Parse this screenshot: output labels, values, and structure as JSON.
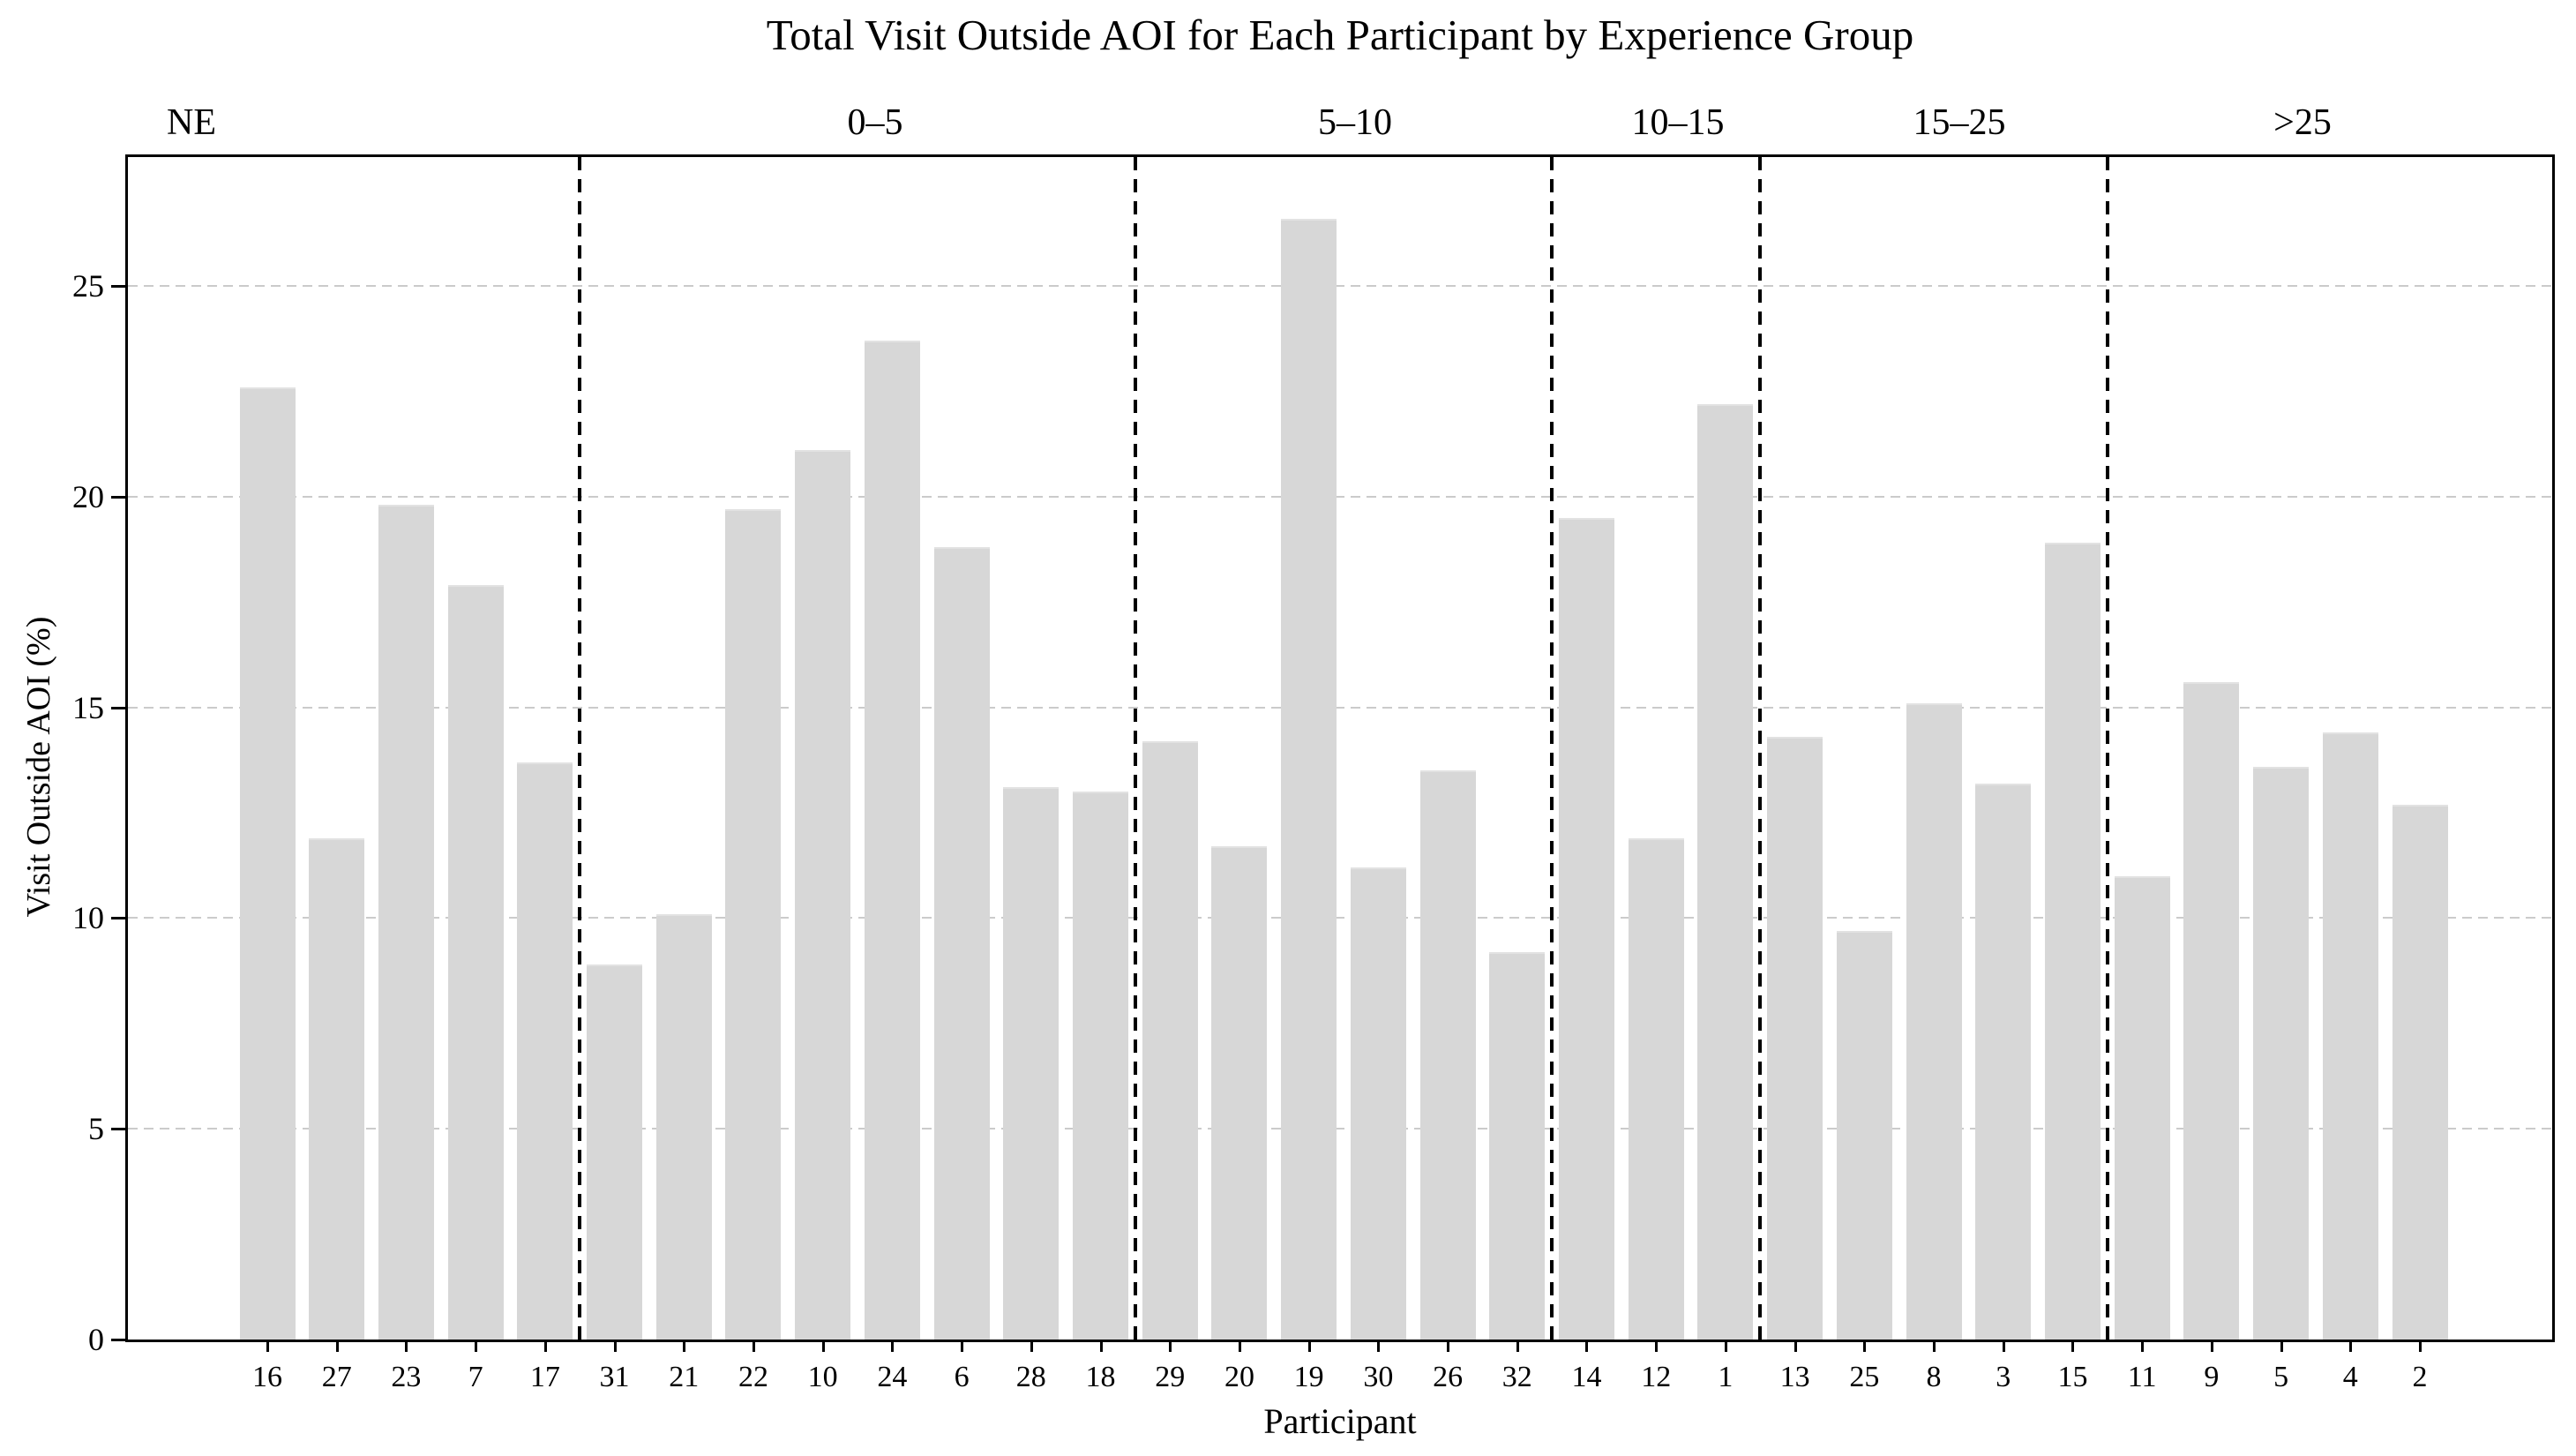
{
  "chart_data": {
    "type": "bar",
    "title": "Total Visit Outside AOI for Each Participant by Experience Group",
    "xlabel": "Participant",
    "ylabel": "Visit Outside AOI (%)",
    "yticks": [
      0,
      5,
      10,
      15,
      20,
      25
    ],
    "ylim": [
      0,
      28
    ],
    "grid": "horizontal-dashed",
    "legend": "none",
    "bar_color": "#d7d7d7",
    "grid_color": "#cbcbcb",
    "separator_color": "#000000",
    "axis_color": "#000000",
    "groups": [
      {
        "label": "NE",
        "participants": [
          "16",
          "27",
          "23",
          "7",
          "17"
        ],
        "values": [
          22.6,
          11.9,
          19.8,
          17.9,
          13.7
        ]
      },
      {
        "label": "0–5",
        "participants": [
          "31",
          "21",
          "22",
          "10",
          "24",
          "6",
          "28",
          "18"
        ],
        "values": [
          8.9,
          10.1,
          19.7,
          21.1,
          23.7,
          18.8,
          13.1,
          13.0
        ]
      },
      {
        "label": "5–10",
        "participants": [
          "29",
          "20",
          "19",
          "30",
          "26",
          "32"
        ],
        "values": [
          14.2,
          11.7,
          26.6,
          11.2,
          13.5,
          9.2
        ]
      },
      {
        "label": "10–15",
        "participants": [
          "14",
          "12",
          "1"
        ],
        "values": [
          19.5,
          11.9,
          22.2
        ]
      },
      {
        "label": "15–25",
        "participants": [
          "13",
          "25",
          "8",
          "3",
          "15"
        ],
        "values": [
          14.3,
          9.7,
          15.1,
          13.2,
          18.9
        ]
      },
      {
        "label": ">25",
        "participants": [
          "11",
          "9",
          "5",
          "4",
          "2"
        ],
        "values": [
          11.0,
          15.6,
          13.6,
          14.4,
          12.7
        ]
      }
    ]
  }
}
